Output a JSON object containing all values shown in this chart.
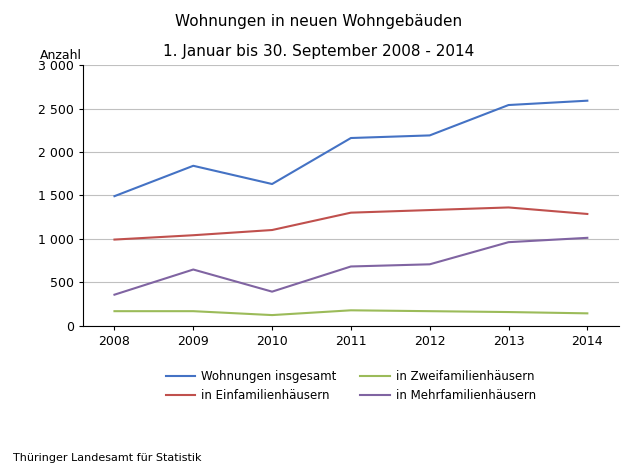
{
  "title_line1": "Wohnungen in neuen Wohngebäuden",
  "title_line2": "1. Januar bis 30. September 2008 - 2014",
  "ylabel": "Anzahl",
  "footer": "Thüringer Landesamt für Statistik",
  "years": [
    2008,
    2009,
    2010,
    2011,
    2012,
    2013,
    2014
  ],
  "series": {
    "Wohnungen insgesamt": {
      "values": [
        1490,
        1840,
        1630,
        2160,
        2190,
        2540,
        2590
      ],
      "color": "#4472C4",
      "linewidth": 1.5
    },
    "in Einfamilienhäusern": {
      "values": [
        990,
        1040,
        1100,
        1300,
        1330,
        1360,
        1285
      ],
      "color": "#C0504D",
      "linewidth": 1.5
    },
    "in Zweifamilienhäusern": {
      "values": [
        165,
        165,
        120,
        175,
        165,
        155,
        140
      ],
      "color": "#9BBB59",
      "linewidth": 1.5
    },
    "in Mehrfamilienhäusern": {
      "values": [
        355,
        645,
        390,
        680,
        705,
        960,
        1010
      ],
      "color": "#8064A2",
      "linewidth": 1.5
    }
  },
  "ylim": [
    0,
    3000
  ],
  "yticks": [
    0,
    500,
    1000,
    1500,
    2000,
    2500,
    3000
  ],
  "ytick_labels": [
    "0",
    "500",
    "1 000",
    "1 500",
    "2 000",
    "2 500",
    "3 000"
  ],
  "grid_color": "#C0C0C0",
  "background_color": "#FFFFFF",
  "legend_order": [
    "Wohnungen insgesamt",
    "in Einfamilienhäusern",
    "in Zweifamilienhäusern",
    "in Mehrfamilienhäusern"
  ]
}
